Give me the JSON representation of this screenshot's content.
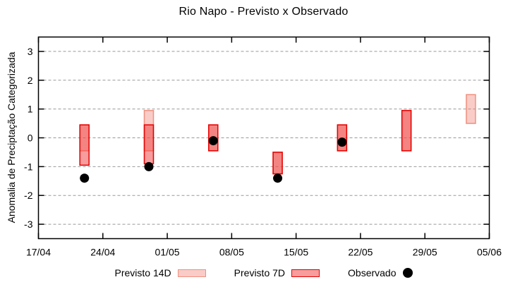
{
  "chart_data": {
    "type": "bar",
    "subtype": "forecast-range-bars-with-observed-points",
    "title": "Rio Napo - Previsto x Observado",
    "xlabel": "",
    "ylabel": "Anomalia de Preciptação Categorizada",
    "ylim": [
      -3.5,
      3.5
    ],
    "y_ticks": [
      3,
      2,
      1,
      0,
      -1,
      -2,
      -3
    ],
    "x_range_days": 49,
    "x_ticks": [
      {
        "label": "17/04",
        "day": 0
      },
      {
        "label": "24/04",
        "day": 7
      },
      {
        "label": "01/05",
        "day": 14
      },
      {
        "label": "08/05",
        "day": 21
      },
      {
        "label": "15/05",
        "day": 28
      },
      {
        "label": "22/05",
        "day": 35
      },
      {
        "label": "29/05",
        "day": 42
      },
      {
        "label": "05/06",
        "day": 49
      }
    ],
    "grid": true,
    "legend_position": "bottom-center",
    "legend": [
      {
        "label": "Previsto 14D",
        "swatch": "box-light-pink"
      },
      {
        "label": "Previsto 7D",
        "swatch": "box-salmon"
      },
      {
        "label": "Observado",
        "swatch": "black-dot"
      }
    ],
    "bars": [
      {
        "date": "22/04",
        "day": 5,
        "previsto_14d": [
          -0.45,
          0.45
        ],
        "previsto_7d": [
          -0.95,
          0.45
        ],
        "observado": -1.4
      },
      {
        "date": "29/04",
        "day": 12,
        "previsto_14d": [
          -0.45,
          0.95
        ],
        "previsto_7d": [
          -0.9,
          0.45
        ],
        "observado": -1.0
      },
      {
        "date": "06/05",
        "day": 19,
        "previsto_14d": [
          -0.45,
          0.45
        ],
        "previsto_7d": [
          -0.45,
          0.45
        ],
        "observado": -0.1
      },
      {
        "date": "13/05",
        "day": 26,
        "previsto_14d": [
          -1.25,
          -0.5
        ],
        "previsto_7d": [
          -1.25,
          -0.5
        ],
        "observado": -1.4
      },
      {
        "date": "20/05",
        "day": 33,
        "previsto_14d": [
          -0.45,
          0.45
        ],
        "previsto_7d": [
          -0.45,
          0.45
        ],
        "observado": -0.15
      },
      {
        "date": "27/05",
        "day": 40,
        "previsto_14d": [
          -0.45,
          0.95
        ],
        "previsto_7d": [
          -0.45,
          0.95
        ],
        "observado": null
      },
      {
        "date": "03/06",
        "day": 47,
        "previsto_14d": [
          0.5,
          1.5
        ],
        "previsto_7d": null,
        "observado": null
      }
    ],
    "colors": {
      "previsto_14d_fill": "rgba(240,128,114,0.4)",
      "previsto_14d_stroke": "#f0907e",
      "previsto_7d_fill": "rgba(240,60,60,0.5)",
      "previsto_7d_stroke": "#e60000",
      "observado": "#000000",
      "grid": "#999999",
      "axis": "#000000",
      "background": "#ffffff"
    }
  }
}
